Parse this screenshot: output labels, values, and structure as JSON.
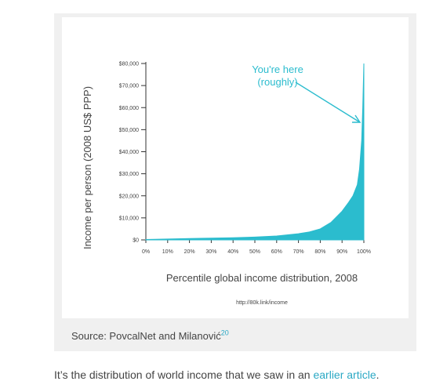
{
  "chart_data": {
    "type": "area",
    "ylabel": "Income per person (2008 US$ PPP)",
    "xlabel": "Percentile global income distribution, 2008",
    "ylim": [
      0,
      80000
    ],
    "xlim": [
      0,
      100
    ],
    "y_ticks": [
      "$0",
      "$10,000",
      "$20,000",
      "$30,000",
      "$40,000",
      "$50,000",
      "$60,000",
      "$70,000",
      "$80,000"
    ],
    "x_ticks": [
      "0%",
      "10%",
      "20%",
      "30%",
      "40%",
      "50%",
      "60%",
      "70%",
      "80%",
      "90%",
      "100%"
    ],
    "x": [
      0,
      10,
      20,
      30,
      40,
      50,
      60,
      70,
      75,
      80,
      85,
      90,
      93,
      95,
      97,
      98,
      99,
      99.5,
      100
    ],
    "values": [
      200,
      400,
      600,
      800,
      1000,
      1300,
      1800,
      2800,
      3600,
      5000,
      8000,
      13000,
      17000,
      20000,
      25000,
      32000,
      45000,
      60000,
      80000
    ],
    "annotation": {
      "line1": "You're here",
      "line2": "(roughly)"
    },
    "link_note": "http://80k.link/income",
    "grid": false,
    "color": "#2bbcce"
  },
  "caption": {
    "source": "Source: PovcalNet and Milanović",
    "footnote": "20"
  },
  "body": {
    "text_before": "It’s the distribution of world income that we saw in an ",
    "link_text": "earlier article",
    "text_after": "."
  },
  "colors": {
    "accent": "#2bbcce",
    "link": "#2aa8c4"
  }
}
